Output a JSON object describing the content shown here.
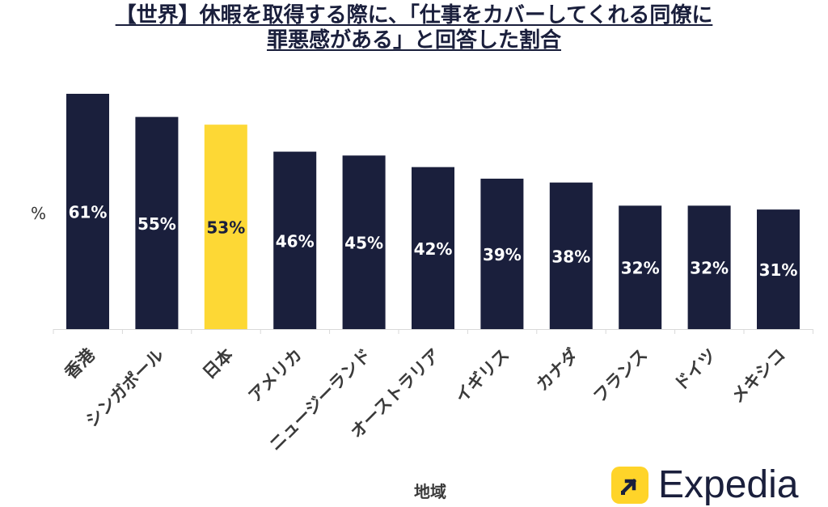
{
  "title_line1": "【世界】休暇を取得する際に、「仕事をカバーしてくれる同僚に",
  "title_line2": "罪悪感がある」と回答した割合",
  "logo_text": "Expedia",
  "colors": {
    "bar": "#1a1f3c",
    "highlight": "#fdd835",
    "label_light": "#ffffff",
    "label_dark": "#1a1f3c"
  },
  "chart_data": {
    "type": "bar",
    "title": "【世界】休暇を取得する際に、「仕事をカバーしてくれる同僚に罪悪感がある」と回答した割合",
    "xlabel": "地域",
    "ylabel": "%",
    "categories": [
      "香港",
      "シンガポール",
      "日本",
      "アメリカ",
      "ニュージーランド",
      "オーストラリア",
      "イギリス",
      "カナダ",
      "フランス",
      "ドイツ",
      "メキシコ"
    ],
    "values": [
      61,
      55,
      53,
      46,
      45,
      42,
      39,
      38,
      32,
      32,
      31
    ],
    "data_labels": [
      "61%",
      "55%",
      "53%",
      "46%",
      "45%",
      "42%",
      "39%",
      "38%",
      "32%",
      "32%",
      "31%"
    ],
    "highlight_index": 2,
    "ylim": [
      0,
      61
    ],
    "grid": false
  }
}
